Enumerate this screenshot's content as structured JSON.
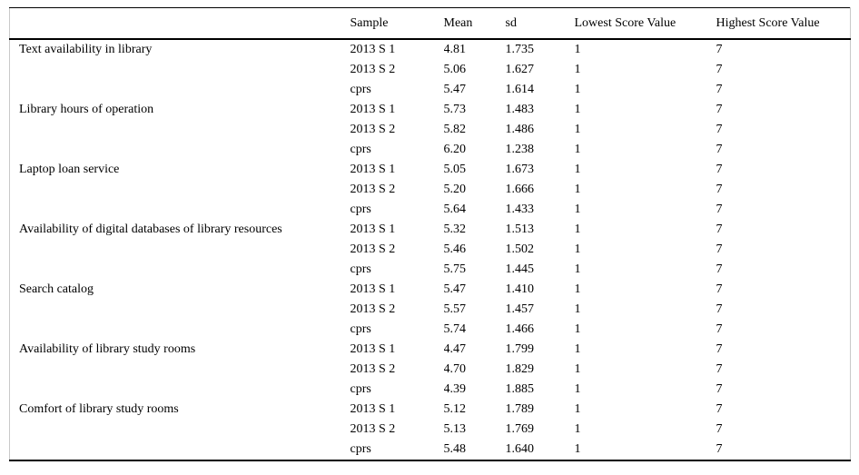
{
  "table": {
    "columns": [
      "",
      "Sample",
      "Mean",
      "sd",
      "Lowest Score Value",
      "Highest Score Value"
    ],
    "groups": [
      {
        "item": "Text availability in library",
        "rows": [
          {
            "sample": "2013 S 1",
            "mean": "4.81",
            "sd": "1.735",
            "lowest": "1",
            "highest": "7"
          },
          {
            "sample": "2013 S 2",
            "mean": "5.06",
            "sd": "1.627",
            "lowest": "1",
            "highest": "7"
          },
          {
            "sample": "cprs",
            "mean": "5.47",
            "sd": "1.614",
            "lowest": "1",
            "highest": "7"
          }
        ]
      },
      {
        "item": "Library hours of operation",
        "rows": [
          {
            "sample": "2013 S 1",
            "mean": "5.73",
            "sd": "1.483",
            "lowest": "1",
            "highest": "7"
          },
          {
            "sample": "2013 S 2",
            "mean": "5.82",
            "sd": "1.486",
            "lowest": "1",
            "highest": "7"
          },
          {
            "sample": "cprs",
            "mean": "6.20",
            "sd": "1.238",
            "lowest": "1",
            "highest": "7"
          }
        ]
      },
      {
        "item": "Laptop loan service",
        "rows": [
          {
            "sample": "2013 S 1",
            "mean": "5.05",
            "sd": "1.673",
            "lowest": "1",
            "highest": "7"
          },
          {
            "sample": "2013 S 2",
            "mean": "5.20",
            "sd": "1.666",
            "lowest": "1",
            "highest": "7"
          },
          {
            "sample": "cprs",
            "mean": "5.64",
            "sd": "1.433",
            "lowest": "1",
            "highest": "7"
          }
        ]
      },
      {
        "item": "Availability of digital databases of library resources",
        "rows": [
          {
            "sample": "2013 S 1",
            "mean": "5.32",
            "sd": "1.513",
            "lowest": "1",
            "highest": "7"
          },
          {
            "sample": "2013 S 2",
            "mean": "5.46",
            "sd": "1.502",
            "lowest": "1",
            "highest": "7"
          },
          {
            "sample": "cprs",
            "mean": "5.75",
            "sd": "1.445",
            "lowest": "1",
            "highest": "7"
          }
        ]
      },
      {
        "item": "Search catalog",
        "rows": [
          {
            "sample": "2013 S 1",
            "mean": "5.47",
            "sd": "1.410",
            "lowest": "1",
            "highest": "7"
          },
          {
            "sample": "2013 S 2",
            "mean": "5.57",
            "sd": "1.457",
            "lowest": "1",
            "highest": "7"
          },
          {
            "sample": "cprs",
            "mean": "5.74",
            "sd": "1.466",
            "lowest": "1",
            "highest": "7"
          }
        ]
      },
      {
        "item": "Availability of library study rooms",
        "rows": [
          {
            "sample": "2013 S 1",
            "mean": "4.47",
            "sd": "1.799",
            "lowest": "1",
            "highest": "7"
          },
          {
            "sample": "2013 S 2",
            "mean": "4.70",
            "sd": "1.829",
            "lowest": "1",
            "highest": "7"
          },
          {
            "sample": "cprs",
            "mean": "4.39",
            "sd": "1.885",
            "lowest": "1",
            "highest": "7"
          }
        ]
      },
      {
        "item": "Comfort of library study rooms",
        "rows": [
          {
            "sample": "2013 S 1",
            "mean": "5.12",
            "sd": "1.789",
            "lowest": "1",
            "highest": "7"
          },
          {
            "sample": "2013 S 2",
            "mean": "5.13",
            "sd": "1.769",
            "lowest": "1",
            "highest": "7"
          },
          {
            "sample": "cprs",
            "mean": "5.48",
            "sd": "1.640",
            "lowest": "1",
            "highest": "7"
          }
        ]
      }
    ]
  }
}
